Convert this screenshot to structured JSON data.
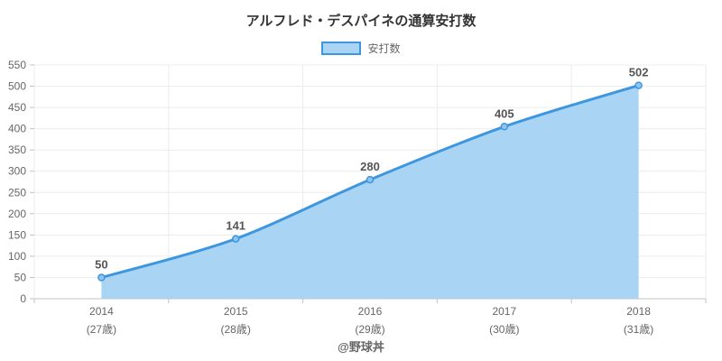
{
  "title": "アルフレド・デスパイネの通算安打数",
  "legend": {
    "label": "安打数"
  },
  "footer": {
    "credit": "@野球丼"
  },
  "chart_data": {
    "type": "area",
    "title": "アルフレド・デスパイネの通算安打数",
    "series": [
      {
        "name": "安打数",
        "values": [
          50,
          141,
          280,
          405,
          502
        ]
      }
    ],
    "categories": [
      "2014",
      "2015",
      "2016",
      "2017",
      "2018"
    ],
    "category_sublabels": [
      "(27歳)",
      "(28歳)",
      "(29歳)",
      "(30歳)",
      "(31歳)"
    ],
    "point_labels": [
      "50",
      "141",
      "280",
      "405",
      "502"
    ],
    "xlabel": "",
    "ylabel": "",
    "ylim": [
      0,
      550
    ],
    "ytick_step": 50,
    "grid": true,
    "legend_position": "top",
    "annotation": "@野球丼",
    "colors": {
      "line": "#3E97DE",
      "area_fill": "#A9D4F4",
      "marker_fill": "#8FC4EE",
      "grid": "#ECECEC",
      "axis_line": "#C2C2C2",
      "tick_label": "#666666",
      "title": "#333333",
      "point_label": "#555555",
      "credit": "#666666"
    }
  }
}
